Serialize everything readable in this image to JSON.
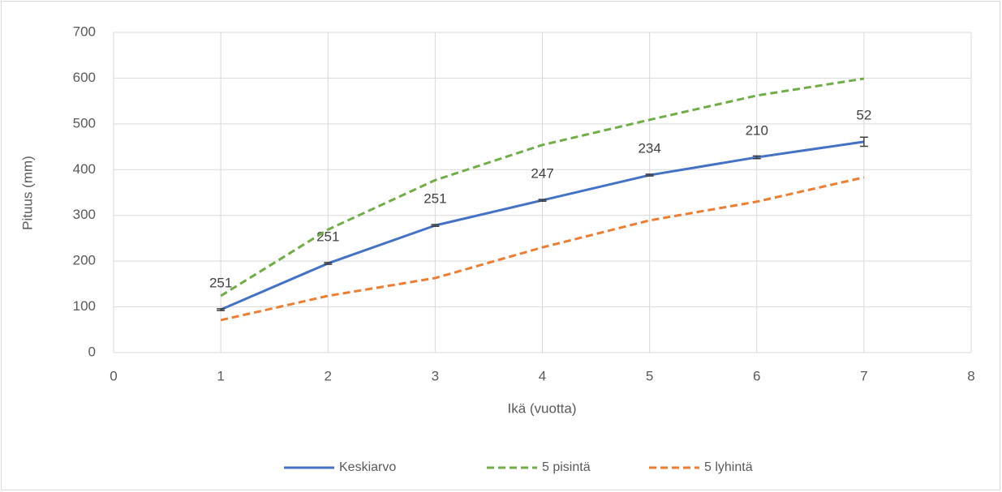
{
  "chart_data": {
    "type": "line",
    "x_label": "Ikä (vuotta)",
    "y_label": "Pituus (mm)",
    "x": [
      1,
      2,
      3,
      4,
      5,
      6,
      7
    ],
    "series": [
      {
        "name": "Keskiarvo",
        "color": "#4472c4",
        "dash": "solid",
        "values": [
          94,
          195,
          278,
          333,
          388,
          427,
          461
        ],
        "errors": [
          2,
          2,
          2,
          2,
          2,
          3,
          10
        ],
        "counts": [
          251,
          251,
          251,
          247,
          234,
          210,
          52
        ]
      },
      {
        "name": "5 pisintä",
        "color": "#70ad47",
        "dash": "dashed",
        "values": [
          124,
          269,
          377,
          454,
          509,
          562,
          599
        ]
      },
      {
        "name": "5 lyhintä",
        "color": "#ed7d31",
        "dash": "dashed",
        "values": [
          71,
          124,
          163,
          230,
          289,
          330,
          383
        ]
      }
    ],
    "xlim": [
      0,
      8
    ],
    "xticks": [
      0,
      1,
      2,
      3,
      4,
      5,
      6,
      7,
      8
    ],
    "ylim": [
      0,
      700
    ],
    "yticks": [
      0,
      100,
      200,
      300,
      400,
      500,
      600,
      700
    ],
    "grid": true,
    "legend": "bottom"
  }
}
